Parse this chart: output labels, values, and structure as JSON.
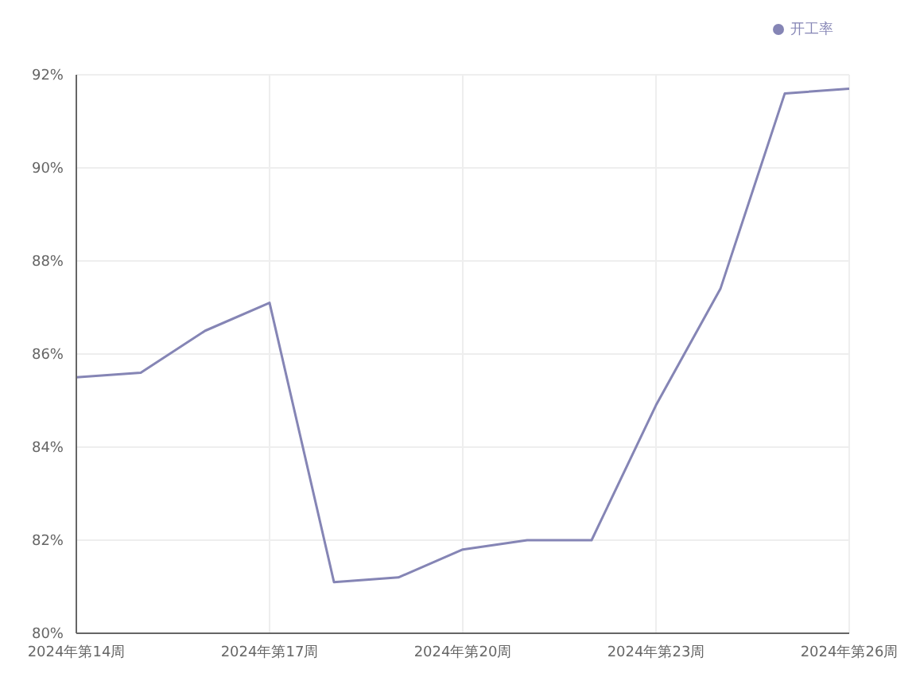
{
  "chart_data": {
    "type": "line",
    "categories": [
      "2024年第14周",
      null,
      null,
      "2024年第17周",
      null,
      null,
      "2024年第20周",
      null,
      null,
      "2024年第23周",
      null,
      null,
      "2024年第26周"
    ],
    "series": [
      {
        "name": "开工率",
        "color": "#8585b5",
        "values": [
          85.5,
          85.6,
          86.5,
          87.1,
          81.1,
          81.2,
          81.8,
          82.0,
          82.0,
          84.9,
          87.4,
          91.6,
          91.7
        ]
      }
    ],
    "ylim": [
      80,
      92
    ],
    "yticks": [
      {
        "value": 80,
        "label": "80%"
      },
      {
        "value": 82,
        "label": "82%"
      },
      {
        "value": 84,
        "label": "84%"
      },
      {
        "value": 86,
        "label": "86%"
      },
      {
        "value": 88,
        "label": "88%"
      },
      {
        "value": 90,
        "label": "90%"
      },
      {
        "value": 92,
        "label": "92%"
      }
    ],
    "grid": true,
    "legend": "top right",
    "marker": "none",
    "line_style": "solid"
  }
}
